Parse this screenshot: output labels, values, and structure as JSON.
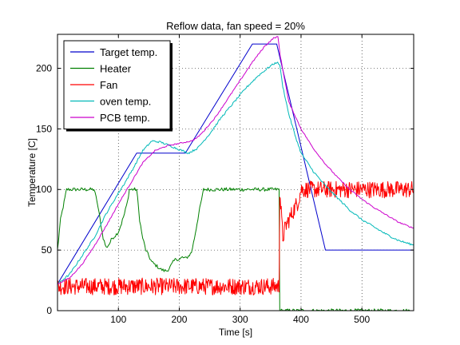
{
  "chart_data": {
    "type": "line",
    "title": "Reflow data, fan speed = 20%",
    "xlabel": "Time [s]",
    "ylabel": "Temperature [C]",
    "xlim": [
      0,
      585
    ],
    "ylim": [
      0,
      228
    ],
    "xticks": [
      100,
      200,
      300,
      400,
      500
    ],
    "yticks": [
      0,
      50,
      100,
      150,
      200
    ],
    "grid": true,
    "grid_style": "dotted",
    "legend_position": "top-left",
    "series": [
      {
        "name": "Target temp.",
        "color": "#0000cc",
        "x": [
          0,
          130,
          210,
          320,
          360,
          440,
          585
        ],
        "y": [
          22,
          130,
          130,
          220,
          220,
          50,
          50
        ]
      },
      {
        "name": "Heater",
        "color": "#008000",
        "x": [
          0,
          5,
          15,
          60,
          65,
          70,
          75,
          80,
          85,
          90,
          95,
          100,
          105,
          110,
          115,
          118,
          125,
          130,
          133,
          135,
          138,
          140,
          145,
          150,
          155,
          160,
          165,
          170,
          175,
          180,
          185,
          190,
          195,
          200,
          205,
          210,
          215,
          220,
          225,
          232,
          240,
          250,
          300,
          364,
          365,
          366,
          585
        ],
        "y": [
          50,
          75,
          100,
          100,
          90,
          75,
          60,
          52,
          55,
          60,
          62,
          65,
          72,
          80,
          90,
          100,
          100,
          100,
          85,
          75,
          65,
          60,
          50,
          45,
          40,
          38,
          36,
          34,
          33,
          33,
          36,
          40,
          43,
          42,
          44,
          43,
          45,
          48,
          60,
          80,
          100,
          100,
          100,
          100,
          0,
          0,
          0
        ],
        "noise": 1.5
      },
      {
        "name": "Fan",
        "color": "#ff0000",
        "x": [
          0,
          364,
          365,
          370,
          375,
          380,
          385,
          390,
          395,
          400,
          585
        ],
        "y": [
          20,
          20,
          100,
          60,
          70,
          75,
          80,
          85,
          90,
          100,
          100
        ],
        "noise": 7
      },
      {
        "name": "oven temp.",
        "color": "#00b8b8",
        "x": [
          0,
          20,
          40,
          60,
          80,
          100,
          110,
          125,
          140,
          155,
          170,
          185,
          200,
          215,
          230,
          250,
          270,
          290,
          310,
          330,
          350,
          360,
          365,
          370,
          380,
          390,
          400,
          420,
          440,
          460,
          480,
          500,
          520,
          540,
          560,
          585
        ],
        "y": [
          22,
          30,
          45,
          60,
          80,
          97,
          105,
          118,
          132,
          140,
          139,
          136,
          133,
          130,
          134,
          146,
          160,
          172,
          184,
          194,
          202,
          205,
          203,
          185,
          162,
          145,
          130,
          115,
          103,
          93,
          83,
          75,
          69,
          63,
          58,
          54
        ],
        "noise": 0.8
      },
      {
        "name": "PCB temp.",
        "color": "#cc00cc",
        "x": [
          0,
          20,
          40,
          60,
          80,
          100,
          120,
          140,
          160,
          180,
          200,
          220,
          230,
          240,
          260,
          280,
          300,
          320,
          340,
          355,
          362,
          366,
          380,
          400,
          420,
          440,
          460,
          480,
          500,
          520,
          540,
          560,
          585
        ],
        "y": [
          22,
          27,
          38,
          53,
          70,
          88,
          105,
          122,
          132,
          136,
          138,
          140,
          143,
          148,
          160,
          175,
          190,
          205,
          218,
          225,
          226,
          210,
          172,
          150,
          134,
          121,
          110,
          100,
          92,
          85,
          79,
          73,
          68
        ],
        "noise": 0.5
      }
    ]
  }
}
